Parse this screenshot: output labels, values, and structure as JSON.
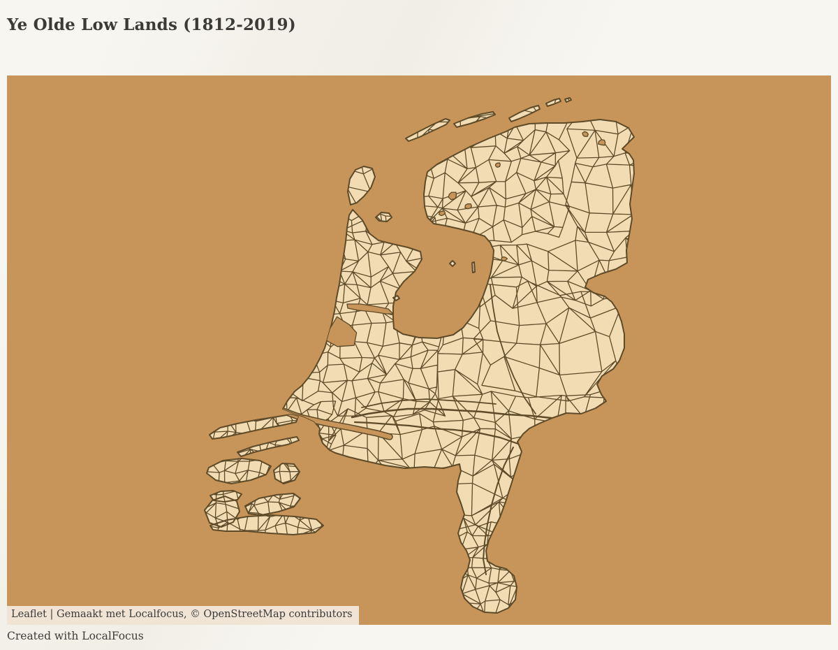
{
  "header": {
    "title": "Ye Olde Low Lands (1812-2019)"
  },
  "map": {
    "attribution": {
      "leaflet_label": "Leaflet",
      "middle_text": " | Gemaakt met Localfocus, ",
      "osm_text": "© OpenStreetMap contributors"
    },
    "colors": {
      "sea": "#c79459",
      "land": "#f1dcb3",
      "border": "#5d4a28",
      "attribution_bg": "rgba(255,255,255,0.75)",
      "attribution_text": "#3a3a3a"
    }
  },
  "footer": {
    "credit": "Created with LocalFocus"
  },
  "page": {
    "background": "#f7f6f1",
    "title_color": "#3b3a37"
  }
}
